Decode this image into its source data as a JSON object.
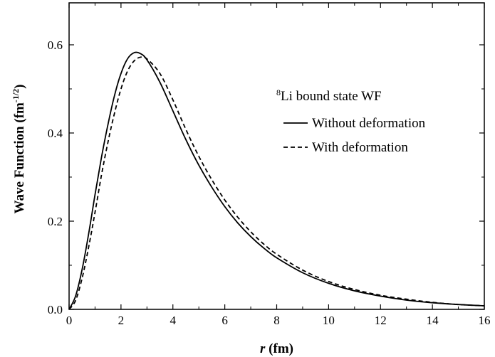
{
  "chart_data": {
    "type": "line",
    "xlabel_var": "r",
    "xlabel_unit": " (fm)",
    "ylabel_main": "Wave Function (fm",
    "ylabel_sup": "-1/2",
    "ylabel_close": ")",
    "xlim": [
      0,
      16
    ],
    "ylim": [
      0,
      0.6
    ],
    "x_ticks": [
      0,
      2,
      4,
      6,
      8,
      10,
      12,
      14,
      16
    ],
    "x_tick_labels": [
      "0",
      "2",
      "4",
      "6",
      "8",
      "10",
      "12",
      "14",
      "16"
    ],
    "y_ticks": [
      0,
      0.2,
      0.4,
      0.6
    ],
    "y_tick_labels": [
      "0.0",
      "0.2",
      "0.4",
      "0.6"
    ],
    "grid": false,
    "legend": {
      "position": "top-right",
      "title_sup": "8",
      "title_text": "Li bound state WF"
    },
    "series": [
      {
        "name": "Without deformation",
        "style": "solid",
        "x": [
          0,
          0.25,
          0.5,
          0.75,
          1.0,
          1.25,
          1.5,
          1.75,
          2.0,
          2.25,
          2.5,
          2.75,
          3.0,
          3.5,
          4.0,
          4.5,
          5.0,
          5.5,
          6.0,
          6.5,
          7.0,
          7.5,
          8.0,
          9.0,
          10.0,
          11.0,
          12.0,
          13.0,
          14.0,
          15.0,
          16.0
        ],
        "y": [
          0.0,
          0.03,
          0.09,
          0.17,
          0.26,
          0.345,
          0.42,
          0.485,
          0.535,
          0.568,
          0.582,
          0.58,
          0.566,
          0.515,
          0.45,
          0.385,
          0.327,
          0.277,
          0.233,
          0.196,
          0.165,
          0.139,
          0.117,
          0.083,
          0.059,
          0.042,
          0.03,
          0.021,
          0.015,
          0.011,
          0.008
        ]
      },
      {
        "name": "With deformation",
        "style": "dashed",
        "x": [
          0,
          0.25,
          0.5,
          0.75,
          1.0,
          1.25,
          1.5,
          1.75,
          2.0,
          2.25,
          2.5,
          2.75,
          3.0,
          3.5,
          4.0,
          4.5,
          5.0,
          5.5,
          6.0,
          6.5,
          7.0,
          7.5,
          8.0,
          9.0,
          10.0,
          11.0,
          12.0,
          13.0,
          14.0,
          15.0,
          16.0
        ],
        "y": [
          0.0,
          0.02,
          0.07,
          0.14,
          0.22,
          0.305,
          0.38,
          0.445,
          0.5,
          0.54,
          0.563,
          0.572,
          0.568,
          0.535,
          0.475,
          0.408,
          0.347,
          0.294,
          0.248,
          0.209,
          0.176,
          0.148,
          0.125,
          0.089,
          0.063,
          0.045,
          0.032,
          0.023,
          0.016,
          0.011,
          0.008
        ]
      }
    ]
  }
}
